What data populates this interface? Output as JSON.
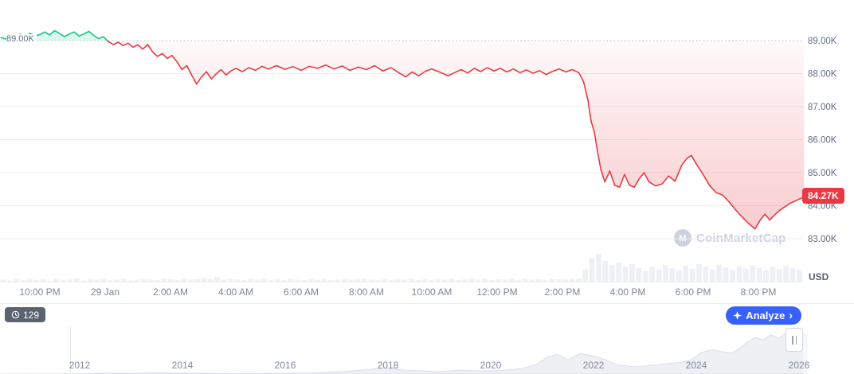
{
  "watermark": {
    "text": "CoinMarketCap"
  },
  "footer": {
    "history_count": "129",
    "analyze_label": "Analyze"
  },
  "colors": {
    "up": "#16c784",
    "down": "#ea3943",
    "blue": "#3861fb",
    "grid": "#e9edf3",
    "dotted": "#b7bfcc",
    "axis_text": "#616e85",
    "muted_text": "#7d8897",
    "volume": "#edf0f4",
    "timeline_fill": "#eef0f4",
    "timeline_stroke": "#d9dfe8",
    "watermark": "#cbd3e0",
    "badge_dark": "#5b6370"
  },
  "chart_data": {
    "type": "line",
    "x_ticks": [
      {
        "label": "10:00 PM",
        "t": 0
      },
      {
        "label": "29 Jan",
        "t": 2
      },
      {
        "label": "2:00 AM",
        "t": 4
      },
      {
        "label": "4:00 AM",
        "t": 6
      },
      {
        "label": "6:00 AM",
        "t": 8
      },
      {
        "label": "8:00 AM",
        "t": 10
      },
      {
        "label": "10:00 AM",
        "t": 12
      },
      {
        "label": "12:00 PM",
        "t": 14
      },
      {
        "label": "2:00 PM",
        "t": 16
      },
      {
        "label": "4:00 PM",
        "t": 18
      },
      {
        "label": "6:00 PM",
        "t": 20
      },
      {
        "label": "8:00 PM",
        "t": 22
      }
    ],
    "y_ticks": [
      {
        "label": "89.00K",
        "value": 89
      },
      {
        "label": "88.00K",
        "value": 88
      },
      {
        "label": "87.00K",
        "value": 87
      },
      {
        "label": "86.00K",
        "value": 86
      },
      {
        "label": "85.00K",
        "value": 85
      },
      {
        "label": "84.00K",
        "value": 84
      },
      {
        "label": "83.00K",
        "value": 83
      }
    ],
    "ylim": [
      82.6,
      90.2
    ],
    "reference": {
      "value": 89,
      "label": "89.00K"
    },
    "current": {
      "value": 84.27,
      "label": "84.27K"
    },
    "unit_label": "USD",
    "price_series": [
      [
        -1.2,
        89.1
      ],
      [
        -1.05,
        89.05
      ],
      [
        -0.9,
        89.16
      ],
      [
        -0.75,
        89.08
      ],
      [
        -0.6,
        89.2
      ],
      [
        -0.45,
        89.12
      ],
      [
        -0.3,
        89.22
      ],
      [
        -0.15,
        89.14
      ],
      [
        0,
        89.18
      ],
      [
        0.15,
        89.26
      ],
      [
        0.3,
        89.17
      ],
      [
        0.45,
        89.3
      ],
      [
        0.6,
        89.22
      ],
      [
        0.75,
        89.12
      ],
      [
        0.9,
        89.2
      ],
      [
        1.05,
        89.26
      ],
      [
        1.2,
        89.14
      ],
      [
        1.35,
        89.2
      ],
      [
        1.5,
        89.28
      ],
      [
        1.65,
        89.16
      ],
      [
        1.8,
        89.06
      ],
      [
        1.95,
        89.12
      ],
      [
        2.08,
        88.98
      ],
      [
        2.25,
        88.88
      ],
      [
        2.4,
        88.95
      ],
      [
        2.55,
        88.85
      ],
      [
        2.7,
        88.92
      ],
      [
        2.85,
        88.8
      ],
      [
        3.0,
        88.87
      ],
      [
        3.15,
        88.74
      ],
      [
        3.3,
        88.88
      ],
      [
        3.45,
        88.66
      ],
      [
        3.6,
        88.52
      ],
      [
        3.75,
        88.61
      ],
      [
        3.9,
        88.46
      ],
      [
        4.05,
        88.55
      ],
      [
        4.2,
        88.36
      ],
      [
        4.35,
        88.12
      ],
      [
        4.5,
        88.24
      ],
      [
        4.65,
        87.95
      ],
      [
        4.8,
        87.68
      ],
      [
        4.95,
        87.9
      ],
      [
        5.1,
        88.06
      ],
      [
        5.25,
        87.84
      ],
      [
        5.4,
        87.99
      ],
      [
        5.55,
        88.12
      ],
      [
        5.7,
        87.96
      ],
      [
        5.85,
        88.08
      ],
      [
        6.0,
        88.16
      ],
      [
        6.2,
        88.06
      ],
      [
        6.4,
        88.18
      ],
      [
        6.6,
        88.1
      ],
      [
        6.8,
        88.22
      ],
      [
        7.0,
        88.14
      ],
      [
        7.25,
        88.24
      ],
      [
        7.5,
        88.13
      ],
      [
        7.75,
        88.21
      ],
      [
        8.0,
        88.1
      ],
      [
        8.25,
        88.22
      ],
      [
        8.5,
        88.16
      ],
      [
        8.75,
        88.26
      ],
      [
        9.0,
        88.14
      ],
      [
        9.25,
        88.23
      ],
      [
        9.5,
        88.1
      ],
      [
        9.75,
        88.2
      ],
      [
        10.0,
        88.12
      ],
      [
        10.25,
        88.24
      ],
      [
        10.5,
        88.08
      ],
      [
        10.75,
        88.18
      ],
      [
        11.0,
        88.02
      ],
      [
        11.2,
        87.9
      ],
      [
        11.4,
        88.05
      ],
      [
        11.6,
        87.93
      ],
      [
        11.8,
        88.07
      ],
      [
        12.0,
        88.14
      ],
      [
        12.25,
        88.04
      ],
      [
        12.5,
        87.93
      ],
      [
        12.7,
        88.03
      ],
      [
        12.9,
        88.12
      ],
      [
        13.1,
        88.02
      ],
      [
        13.3,
        88.16
      ],
      [
        13.5,
        88.06
      ],
      [
        13.7,
        88.18
      ],
      [
        13.9,
        88.08
      ],
      [
        14.1,
        88.16
      ],
      [
        14.3,
        88.05
      ],
      [
        14.5,
        88.14
      ],
      [
        14.7,
        88.03
      ],
      [
        14.9,
        88.11
      ],
      [
        15.1,
        88.01
      ],
      [
        15.3,
        88.09
      ],
      [
        15.5,
        87.97
      ],
      [
        15.7,
        88.07
      ],
      [
        15.9,
        88.14
      ],
      [
        16.1,
        88.05
      ],
      [
        16.3,
        88.12
      ],
      [
        16.5,
        88.03
      ],
      [
        16.65,
        87.75
      ],
      [
        16.78,
        87.2
      ],
      [
        16.88,
        86.55
      ],
      [
        16.98,
        86.22
      ],
      [
        17.08,
        85.6
      ],
      [
        17.18,
        85.08
      ],
      [
        17.3,
        84.72
      ],
      [
        17.45,
        85.05
      ],
      [
        17.6,
        84.62
      ],
      [
        17.75,
        84.56
      ],
      [
        17.9,
        84.95
      ],
      [
        18.05,
        84.62
      ],
      [
        18.2,
        84.56
      ],
      [
        18.35,
        84.82
      ],
      [
        18.5,
        85.0
      ],
      [
        18.65,
        84.72
      ],
      [
        18.85,
        84.6
      ],
      [
        19.05,
        84.66
      ],
      [
        19.25,
        84.9
      ],
      [
        19.45,
        84.74
      ],
      [
        19.65,
        85.22
      ],
      [
        19.82,
        85.44
      ],
      [
        19.95,
        85.52
      ],
      [
        20.1,
        85.26
      ],
      [
        20.3,
        84.96
      ],
      [
        20.5,
        84.62
      ],
      [
        20.7,
        84.4
      ],
      [
        20.9,
        84.32
      ],
      [
        21.1,
        84.12
      ],
      [
        21.3,
        83.88
      ],
      [
        21.5,
        83.66
      ],
      [
        21.7,
        83.46
      ],
      [
        21.9,
        83.3
      ],
      [
        22.05,
        83.56
      ],
      [
        22.2,
        83.74
      ],
      [
        22.35,
        83.57
      ],
      [
        22.5,
        83.72
      ],
      [
        22.65,
        83.86
      ],
      [
        22.8,
        83.96
      ],
      [
        22.95,
        84.06
      ],
      [
        23.1,
        84.13
      ],
      [
        23.25,
        84.2
      ],
      [
        23.4,
        84.27
      ]
    ],
    "volume_series": [
      0.1,
      0.07,
      0.12,
      0.08,
      0.15,
      0.09,
      0.11,
      0.06,
      0.13,
      0.08,
      0.1,
      0.14,
      0.07,
      0.11,
      0.09,
      0.12,
      0.08,
      0.1,
      0.13,
      0.07,
      0.09,
      0.12,
      0.1,
      0.08,
      0.14,
      0.11,
      0.09,
      0.13,
      0.1,
      0.12,
      0.16,
      0.12,
      0.18,
      0.1,
      0.14,
      0.11,
      0.09,
      0.13,
      0.1,
      0.12,
      0.08,
      0.11,
      0.09,
      0.12,
      0.1,
      0.08,
      0.12,
      0.09,
      0.11,
      0.08,
      0.1,
      0.12,
      0.09,
      0.11,
      0.13,
      0.1,
      0.08,
      0.11,
      0.09,
      0.12,
      0.1,
      0.13,
      0.09,
      0.11,
      0.08,
      0.12,
      0.1,
      0.14,
      0.09,
      0.11,
      0.13,
      0.1,
      0.12,
      0.09,
      0.11,
      0.1,
      0.13,
      0.09,
      0.12,
      0.1,
      0.11,
      0.09,
      0.13,
      0.11,
      0.1,
      0.12,
      0.14,
      0.45,
      0.85,
      1.0,
      0.75,
      0.6,
      0.7,
      0.55,
      0.65,
      0.5,
      0.4,
      0.55,
      0.45,
      0.6,
      0.5,
      0.42,
      0.58,
      0.48,
      0.65,
      0.55,
      0.45,
      0.62,
      0.52,
      0.44,
      0.56,
      0.48,
      0.6,
      0.5,
      0.42,
      0.54,
      0.46,
      0.58,
      0.5,
      0.44
    ],
    "timeline": {
      "type": "area",
      "value_scale": "normalized-0-100",
      "year_ticks": [
        2012,
        2014,
        2016,
        2018,
        2020,
        2022,
        2024,
        2026
      ],
      "points": [
        [
          2010.45,
          0
        ],
        [
          2011,
          0.2
        ],
        [
          2012,
          0.6
        ],
        [
          2012.5,
          1.8
        ],
        [
          2013,
          1.0
        ],
        [
          2013.5,
          2.5
        ],
        [
          2014,
          2.0
        ],
        [
          2014.5,
          1.2
        ],
        [
          2015,
          0.8
        ],
        [
          2015.5,
          1.0
        ],
        [
          2016,
          1.6
        ],
        [
          2016.5,
          2.2
        ],
        [
          2017,
          5
        ],
        [
          2017.5,
          9
        ],
        [
          2017.95,
          14
        ],
        [
          2018.3,
          9
        ],
        [
          2018.7,
          7
        ],
        [
          2019,
          5
        ],
        [
          2019.4,
          9
        ],
        [
          2019.8,
          7
        ],
        [
          2020.2,
          8
        ],
        [
          2020.6,
          12
        ],
        [
          2020.9,
          22
        ],
        [
          2021.1,
          38
        ],
        [
          2021.3,
          44
        ],
        [
          2021.5,
          32
        ],
        [
          2021.75,
          46
        ],
        [
          2022,
          40
        ],
        [
          2022.2,
          33
        ],
        [
          2022.5,
          20
        ],
        [
          2022.8,
          16
        ],
        [
          2023.1,
          19
        ],
        [
          2023.4,
          23
        ],
        [
          2023.7,
          26
        ],
        [
          2023.9,
          32
        ],
        [
          2024.1,
          48
        ],
        [
          2024.3,
          55
        ],
        [
          2024.5,
          50
        ],
        [
          2024.7,
          47
        ],
        [
          2024.85,
          58
        ],
        [
          2025,
          72
        ],
        [
          2025.15,
          82
        ],
        [
          2025.3,
          76
        ],
        [
          2025.45,
          88
        ],
        [
          2025.6,
          80
        ],
        [
          2025.75,
          92
        ],
        [
          2025.9,
          86
        ],
        [
          2026.05,
          90
        ],
        [
          2026.15,
          87
        ]
      ]
    }
  }
}
